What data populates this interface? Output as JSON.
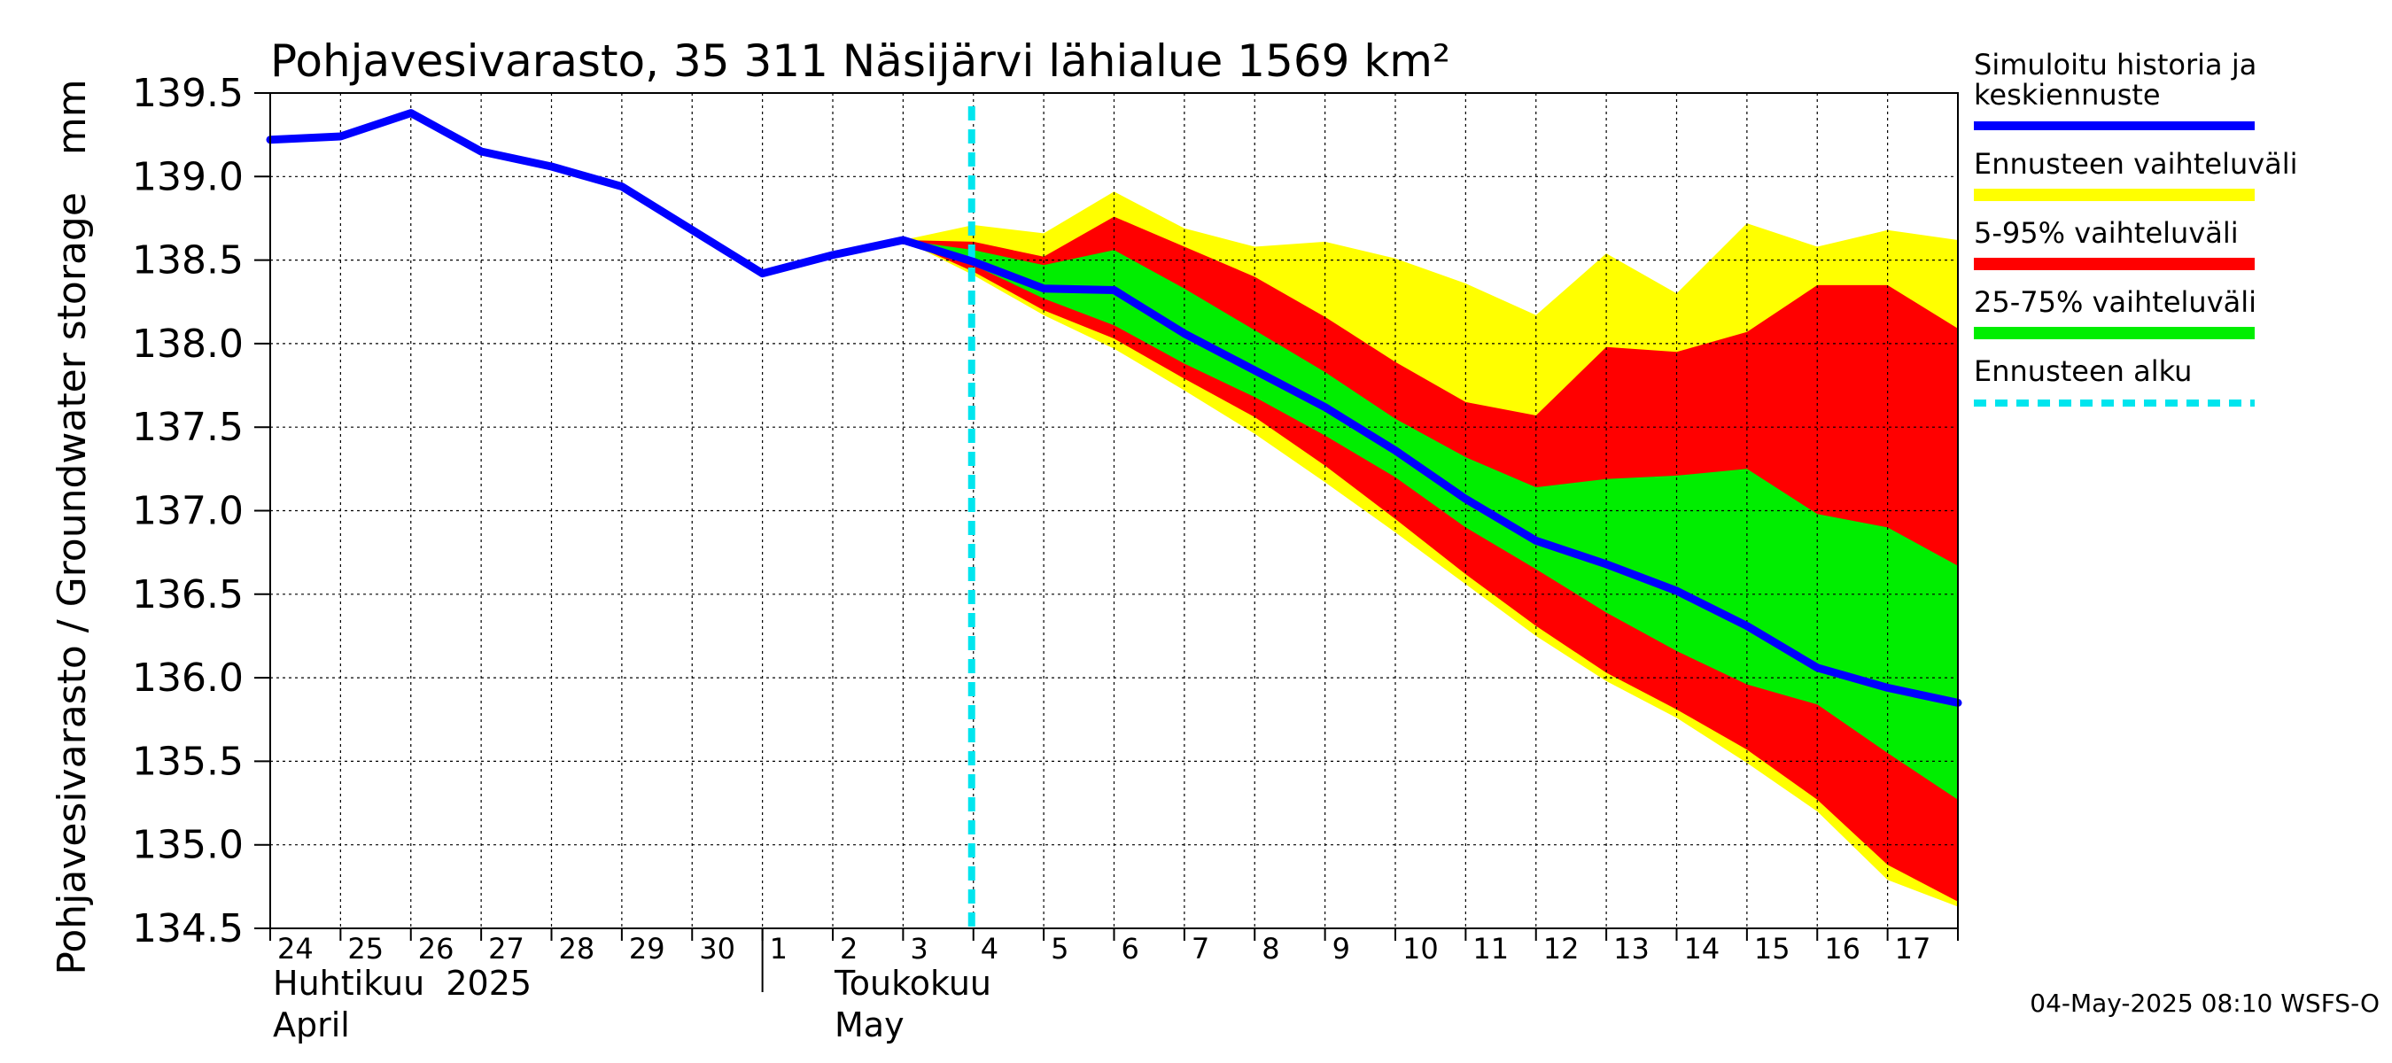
{
  "chart_data": {
    "type": "area",
    "title": "Pohjavesivarasto, 35 311 Näsijärvi lähialue 1569 km²",
    "ylabel": "Pohjavesivarasto / Groundwater storage   mm",
    "ylim": [
      134.5,
      139.5
    ],
    "yticks": [
      "139.5",
      "139.0",
      "138.5",
      "138.0",
      "137.5",
      "137.0",
      "136.5",
      "136.0",
      "135.5",
      "135.0",
      "134.5"
    ],
    "grid": true,
    "x_labels": [
      "24",
      "25",
      "26",
      "27",
      "28",
      "29",
      "30",
      "1",
      "2",
      "3",
      "4",
      "5",
      "6",
      "7",
      "8",
      "9",
      "10",
      "11",
      "12",
      "13",
      "14",
      "15",
      "16",
      "17"
    ],
    "month_labels": [
      {
        "line1": "Huhtikuu  2025",
        "line2": "April"
      },
      {
        "line1": "Toukokuu",
        "line2": "May"
      }
    ],
    "series": [
      {
        "name": "Simuloitu historia ja keskiennuste",
        "x": [
          "2025-04-24",
          "2025-04-25",
          "2025-04-26",
          "2025-04-27",
          "2025-04-28",
          "2025-04-29",
          "2025-04-30",
          "2025-05-01",
          "2025-05-02",
          "2025-05-03",
          "2025-05-04",
          "2025-05-05",
          "2025-05-06",
          "2025-05-07",
          "2025-05-08",
          "2025-05-09",
          "2025-05-10",
          "2025-05-11",
          "2025-05-12",
          "2025-05-13",
          "2025-05-14",
          "2025-05-15",
          "2025-05-16",
          "2025-05-17",
          "2025-05-18"
        ],
        "values": [
          139.22,
          139.24,
          139.38,
          139.15,
          139.06,
          138.94,
          138.68,
          138.42,
          138.53,
          138.62,
          138.49,
          138.33,
          138.32,
          138.06,
          137.84,
          137.62,
          137.36,
          137.07,
          136.82,
          136.68,
          136.52,
          136.31,
          136.06,
          135.94,
          135.85
        ]
      }
    ],
    "bands": [
      {
        "name": "Ennusteen vaihteluväli",
        "x": [
          "2025-05-03",
          "2025-05-04",
          "2025-05-05",
          "2025-05-06",
          "2025-05-07",
          "2025-05-08",
          "2025-05-09",
          "2025-05-10",
          "2025-05-11",
          "2025-05-12",
          "2025-05-13",
          "2025-05-14",
          "2025-05-15",
          "2025-05-16",
          "2025-05-17",
          "2025-05-18"
        ],
        "upper": [
          138.62,
          138.71,
          138.66,
          138.91,
          138.69,
          138.58,
          138.61,
          138.51,
          138.36,
          138.17,
          138.54,
          138.3,
          138.72,
          138.58,
          138.68,
          138.62
        ],
        "lower": [
          138.62,
          138.41,
          138.17,
          137.97,
          137.72,
          137.46,
          137.17,
          136.87,
          136.56,
          136.25,
          135.98,
          135.76,
          135.49,
          135.2,
          134.79,
          134.63
        ]
      },
      {
        "name": "5-95% vaihteluväli",
        "x": [
          "2025-05-03",
          "2025-05-04",
          "2025-05-05",
          "2025-05-06",
          "2025-05-07",
          "2025-05-08",
          "2025-05-09",
          "2025-05-10",
          "2025-05-11",
          "2025-05-12",
          "2025-05-13",
          "2025-05-14",
          "2025-05-15",
          "2025-05-16",
          "2025-05-17",
          "2025-05-18"
        ],
        "upper": [
          138.62,
          138.61,
          138.52,
          138.76,
          138.58,
          138.4,
          138.16,
          137.89,
          137.65,
          137.57,
          137.98,
          137.95,
          138.07,
          138.35,
          138.35,
          138.09
        ],
        "lower": [
          138.62,
          138.43,
          138.2,
          138.03,
          137.79,
          137.56,
          137.27,
          136.95,
          136.62,
          136.31,
          136.03,
          135.81,
          135.57,
          135.27,
          134.88,
          134.66
        ]
      },
      {
        "name": "25-75% vaihteluväli",
        "x": [
          "2025-05-03",
          "2025-05-04",
          "2025-05-05",
          "2025-05-06",
          "2025-05-07",
          "2025-05-08",
          "2025-05-09",
          "2025-05-10",
          "2025-05-11",
          "2025-05-12",
          "2025-05-13",
          "2025-05-14",
          "2025-05-15",
          "2025-05-16",
          "2025-05-17",
          "2025-05-18"
        ],
        "upper": [
          138.62,
          138.56,
          138.47,
          138.56,
          138.33,
          138.08,
          137.83,
          137.55,
          137.32,
          137.14,
          137.19,
          137.21,
          137.25,
          136.98,
          136.9,
          136.67
        ],
        "lower": [
          138.62,
          138.47,
          138.27,
          138.11,
          137.88,
          137.68,
          137.45,
          137.2,
          136.9,
          136.65,
          136.39,
          136.16,
          135.96,
          135.84,
          135.55,
          135.27
        ]
      }
    ],
    "forecast_start": "2025-05-04",
    "legend_placement": "right",
    "legend": [
      {
        "label": "Simuloitu historia ja keskiennuste",
        "color": "#0000ff",
        "style": "line"
      },
      {
        "label": "Ennusteen vaihteluväli",
        "color": "#ffff00",
        "style": "band"
      },
      {
        "label": "5-95% vaihteluväli",
        "color": "#ff0000",
        "style": "band"
      },
      {
        "label": "25-75% vaihteluväli",
        "color": "#00ee00",
        "style": "band"
      },
      {
        "label": "Ennusteen alku",
        "color": "#00e5ee",
        "style": "dashed"
      }
    ],
    "footer": "04-May-2025 08:10 WSFS-O"
  }
}
